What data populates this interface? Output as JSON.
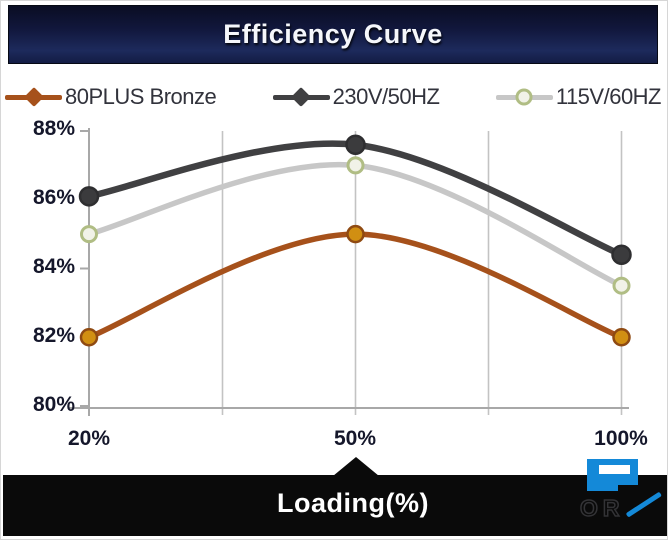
{
  "header": {
    "title": "Efficiency Curve"
  },
  "chart_data": {
    "type": "line",
    "title": "Efficiency Curve",
    "xlabel": "Loading(%)",
    "ylabel": "",
    "categories": [
      "20%",
      "50%",
      "100%"
    ],
    "x_numeric": [
      20,
      50,
      100
    ],
    "x_tick_labels": [
      "20%",
      "50%",
      "100%"
    ],
    "y_tick_labels": [
      "88%",
      "86%",
      "84%",
      "82%",
      "80%"
    ],
    "ylim": [
      80,
      88
    ],
    "grid": "vertical-only",
    "legend_position": "top",
    "series": [
      {
        "name": "80PLUS Bronze",
        "values": [
          82.0,
          85.0,
          82.0
        ],
        "color": "#a6511b",
        "marker": "filled-circle",
        "marker_fill": "#d18f12",
        "marker_stroke": "#8f4a12",
        "legend_marker": "diamond"
      },
      {
        "name": "230V/50HZ",
        "values": [
          86.1,
          87.6,
          84.4
        ],
        "color": "#404042",
        "marker": "filled-circle",
        "marker_fill": "#3b3b3d",
        "marker_stroke": "#2e2e30",
        "legend_marker": "diamond"
      },
      {
        "name": "115V/60HZ",
        "values": [
          85.0,
          87.0,
          83.5
        ],
        "color": "#c7c7c7",
        "marker": "open-circle",
        "marker_fill": "#f1f2e8",
        "marker_stroke": "#b0bd84",
        "legend_marker": "open-circle"
      }
    ],
    "axis_color": "#a8a8a8",
    "grid_color": "#c3c3c3"
  },
  "bottom_bar": {
    "label": "Loading(%)",
    "bg_color": "#0a0a0a"
  },
  "watermark": {
    "ghost_text": "OR",
    "accent_color": "#1489d8"
  }
}
